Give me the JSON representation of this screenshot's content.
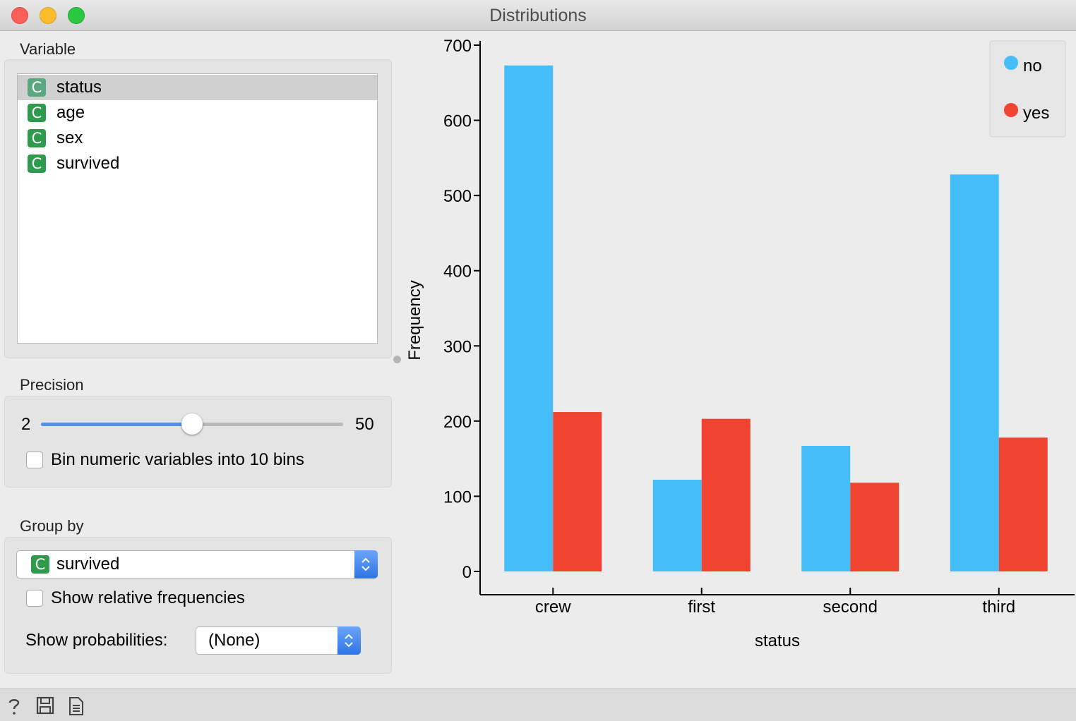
{
  "window": {
    "title": "Distributions"
  },
  "variable": {
    "label": "Variable",
    "items": [
      {
        "icon": "C",
        "name": "status"
      },
      {
        "icon": "C",
        "name": "age"
      },
      {
        "icon": "C",
        "name": "sex"
      },
      {
        "icon": "C",
        "name": "survived"
      }
    ],
    "selected": "status"
  },
  "precision": {
    "label": "Precision",
    "min_label": "2",
    "max_label": "50",
    "slider_fraction": 0.5,
    "bin_checkbox_label": "Bin numeric variables into 10 bins",
    "bin_checked": false
  },
  "group_by": {
    "label": "Group by",
    "selected_icon": "C",
    "selected": "survived",
    "relative_label": "Show relative frequencies",
    "relative_checked": false,
    "probabilities_label": "Show probabilities:",
    "probabilities_value": "(None)"
  },
  "statusbar": {
    "icons": [
      "help-icon",
      "save-icon",
      "report-icon"
    ]
  },
  "colors": {
    "no": "#45bdf8",
    "yes": "#ef4530",
    "accent": "#2f74e6",
    "var_icon": "#2e9a4b"
  },
  "chart_data": {
    "type": "bar",
    "xlabel": "status",
    "ylabel": "Frequency",
    "categories": [
      "crew",
      "first",
      "second",
      "third"
    ],
    "series": [
      {
        "name": "no",
        "values": [
          673,
          122,
          167,
          528
        ]
      },
      {
        "name": "yes",
        "values": [
          212,
          203,
          118,
          178
        ]
      }
    ],
    "ylim": [
      0,
      700
    ],
    "yticks": [
      "0",
      "100",
      "200",
      "300",
      "400",
      "500",
      "600",
      "700"
    ],
    "legend": "top-right",
    "grid": false
  }
}
